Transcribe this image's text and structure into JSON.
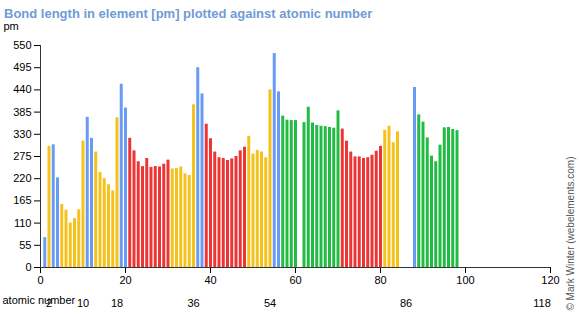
{
  "chart_data": {
    "type": "bar",
    "title": "Bond length in element [pm] plotted against atomic number",
    "ylabel": "pm",
    "xlabel": "atomic number",
    "marked_x": [
      2,
      10,
      18,
      36,
      54,
      86,
      118
    ],
    "credit": "© Mark Winter (webelements.com)",
    "x": [
      1,
      2,
      3,
      4,
      5,
      6,
      7,
      8,
      9,
      10,
      11,
      12,
      13,
      14,
      15,
      16,
      17,
      18,
      19,
      20,
      21,
      22,
      23,
      24,
      25,
      26,
      27,
      28,
      29,
      30,
      31,
      32,
      33,
      34,
      35,
      36,
      37,
      38,
      39,
      40,
      41,
      42,
      43,
      44,
      45,
      46,
      47,
      48,
      49,
      50,
      51,
      52,
      53,
      54,
      55,
      56,
      57,
      58,
      59,
      60,
      61,
      62,
      63,
      64,
      65,
      66,
      67,
      68,
      69,
      70,
      71,
      72,
      73,
      74,
      75,
      76,
      77,
      78,
      79,
      80,
      81,
      82,
      83,
      84,
      85,
      86,
      87,
      88,
      89,
      90,
      91,
      92,
      93,
      94,
      95,
      96,
      97,
      98,
      99,
      100,
      101,
      102,
      103,
      104,
      105,
      106,
      107,
      108,
      109,
      110,
      111,
      112,
      113,
      114,
      115,
      116,
      117,
      118
    ],
    "values": [
      74,
      300,
      304,
      222,
      156,
      142,
      110,
      121,
      143,
      313,
      372,
      320,
      286,
      235,
      220,
      205,
      190,
      371,
      454,
      395,
      320,
      289,
      262,
      250,
      270,
      248,
      250,
      249,
      256,
      266,
      244,
      245,
      249,
      232,
      228,
      403,
      495,
      430,
      355,
      319,
      286,
      272,
      270,
      265,
      269,
      275,
      289,
      298,
      325,
      281,
      290,
      286,
      272,
      440,
      530,
      435,
      375,
      365,
      364,
      364,
      null,
      359,
      397,
      358,
      352,
      350,
      349,
      347,
      345,
      388,
      343,
      313,
      286,
      274,
      274,
      270,
      272,
      278,
      288,
      300,
      340,
      350,
      309,
      336,
      null,
      null,
      null,
      446,
      378,
      360,
      321,
      276,
      262,
      303,
      346,
      347,
      342,
      339,
      null,
      null,
      null,
      null,
      null,
      null,
      null,
      null,
      null,
      null,
      null,
      null,
      null,
      null,
      null,
      null,
      null,
      null,
      null,
      null
    ],
    "colors": [
      "#6a9bf4",
      "#f5c21b",
      "#6a9bf4",
      "#6a9bf4",
      "#f5c21b",
      "#f5c21b",
      "#f5c21b",
      "#f5c21b",
      "#f5c21b",
      "#f5c21b",
      "#6a9bf4",
      "#6a9bf4",
      "#f5c21b",
      "#f5c21b",
      "#f5c21b",
      "#f5c21b",
      "#f5c21b",
      "#f5c21b",
      "#6a9bf4",
      "#6a9bf4",
      "#ee3535",
      "#ee3535",
      "#ee3535",
      "#ee3535",
      "#ee3535",
      "#ee3535",
      "#ee3535",
      "#ee3535",
      "#ee3535",
      "#ee3535",
      "#f5c21b",
      "#f5c21b",
      "#f5c21b",
      "#f5c21b",
      "#f5c21b",
      "#f5c21b",
      "#6a9bf4",
      "#6a9bf4",
      "#ee3535",
      "#ee3535",
      "#ee3535",
      "#ee3535",
      "#ee3535",
      "#ee3535",
      "#ee3535",
      "#ee3535",
      "#ee3535",
      "#ee3535",
      "#f5c21b",
      "#f5c21b",
      "#f5c21b",
      "#f5c21b",
      "#f5c21b",
      "#f5c21b",
      "#6a9bf4",
      "#6a9bf4",
      "#22bb44",
      "#22bb44",
      "#22bb44",
      "#22bb44",
      "#22bb44",
      "#22bb44",
      "#22bb44",
      "#22bb44",
      "#22bb44",
      "#22bb44",
      "#22bb44",
      "#22bb44",
      "#22bb44",
      "#22bb44",
      "#ee3535",
      "#ee3535",
      "#ee3535",
      "#ee3535",
      "#ee3535",
      "#ee3535",
      "#ee3535",
      "#ee3535",
      "#ee3535",
      "#ee3535",
      "#f5c21b",
      "#f5c21b",
      "#f5c21b",
      "#f5c21b",
      "#f5c21b",
      "#f5c21b",
      "#6a9bf4",
      "#6a9bf4",
      "#22bb44",
      "#22bb44",
      "#22bb44",
      "#22bb44",
      "#22bb44",
      "#22bb44",
      "#22bb44",
      "#22bb44",
      "#22bb44",
      "#22bb44",
      "#22bb44",
      "#22bb44",
      "#22bb44",
      "#22bb44",
      "#22bb44",
      "#22bb44",
      "#ee3535",
      "#ee3535",
      "#ee3535",
      "#ee3535",
      "#ee3535",
      "#ee3535",
      "#ee3535",
      "#ee3535",
      "#ee3535",
      "#ee3535",
      "#f5c21b",
      "#f5c21b",
      "#f5c21b",
      "#f5c21b",
      "#f5c21b",
      "#f5c21b"
    ],
    "xlim": [
      0,
      120
    ],
    "xticks": [
      0,
      20,
      40,
      60,
      80,
      100,
      120
    ],
    "ylim": [
      0,
      550
    ],
    "yticks": [
      0,
      55,
      110,
      165,
      220,
      275,
      330,
      385,
      440,
      495,
      550
    ],
    "grid": false
  }
}
